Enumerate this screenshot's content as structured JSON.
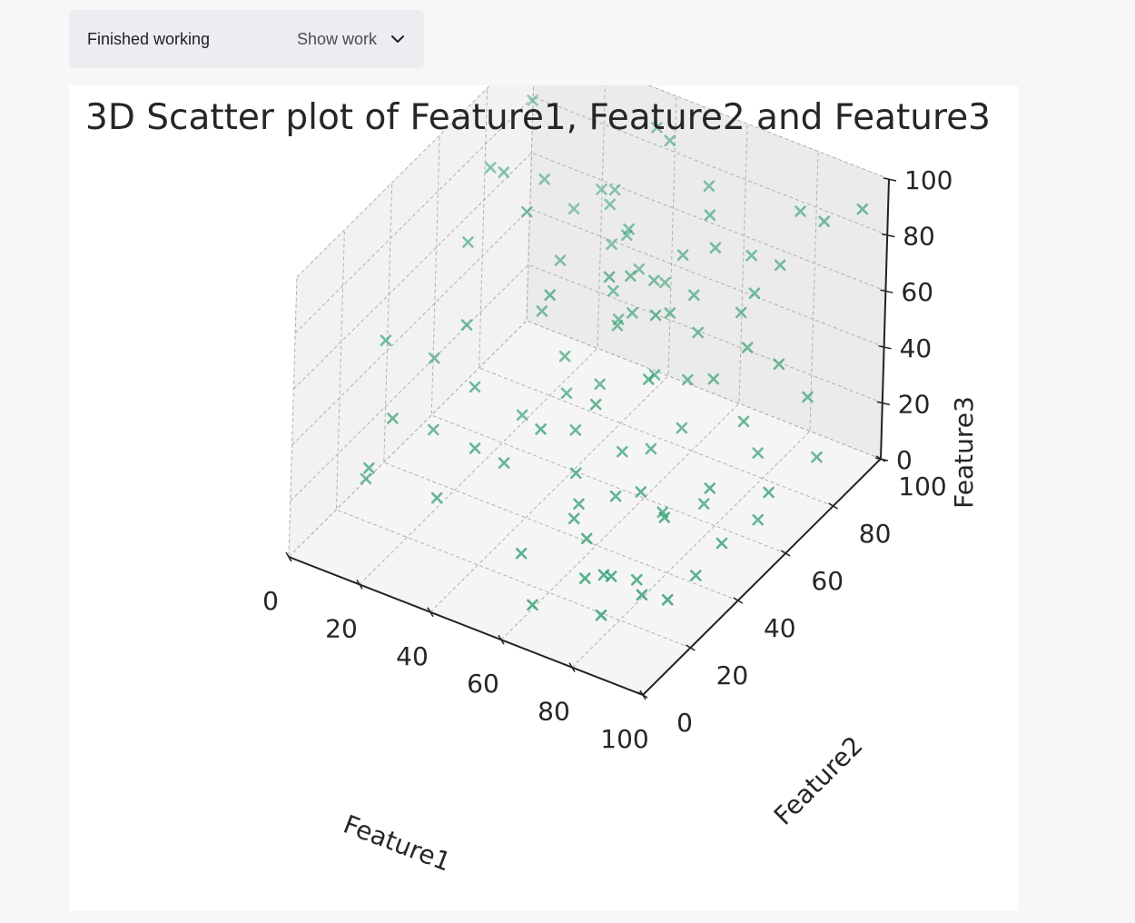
{
  "status": {
    "label": "Finished working",
    "toggle_label": "Show work",
    "toggle_icon": "chevron-down-icon"
  },
  "chart_data": {
    "type": "scatter",
    "projection": "3d",
    "title": "3D Scatter plot of Feature1, Feature2 and Feature3",
    "xlabel": "Feature1",
    "ylabel": "Feature2",
    "zlabel": "Feature3",
    "xlim": [
      0,
      100
    ],
    "ylim": [
      0,
      100
    ],
    "zlim": [
      0,
      100
    ],
    "xticks": [
      "0",
      "20",
      "40",
      "60",
      "80",
      "100"
    ],
    "yticks": [
      "0",
      "20",
      "40",
      "60",
      "80",
      "100"
    ],
    "zticks": [
      "0",
      "20",
      "40",
      "60",
      "80",
      "100"
    ],
    "grid": true,
    "marker": "x",
    "color": "#2e9e6e",
    "points": [
      [
        5,
        92,
        88
      ],
      [
        8,
        70,
        84
      ],
      [
        12,
        55,
        72
      ],
      [
        18,
        78,
        78
      ],
      [
        6,
        30,
        55
      ],
      [
        22,
        40,
        60
      ],
      [
        15,
        20,
        40
      ],
      [
        10,
        45,
        38
      ],
      [
        25,
        75,
        55
      ],
      [
        30,
        60,
        52
      ],
      [
        28,
        20,
        18
      ],
      [
        35,
        45,
        30
      ],
      [
        40,
        30,
        28
      ],
      [
        45,
        70,
        48
      ],
      [
        48,
        85,
        50
      ],
      [
        50,
        55,
        40
      ],
      [
        52,
        20,
        10
      ],
      [
        58,
        35,
        18
      ],
      [
        60,
        50,
        25
      ],
      [
        62,
        10,
        5
      ],
      [
        65,
        40,
        20
      ],
      [
        70,
        60,
        30
      ],
      [
        72,
        25,
        8
      ],
      [
        75,
        45,
        15
      ],
      [
        78,
        30,
        5
      ],
      [
        80,
        55,
        12
      ],
      [
        85,
        70,
        20
      ],
      [
        88,
        40,
        3
      ],
      [
        92,
        60,
        8
      ],
      [
        95,
        80,
        15
      ],
      [
        38,
        95,
        92
      ],
      [
        45,
        90,
        95
      ],
      [
        55,
        92,
        82
      ],
      [
        60,
        85,
        80
      ],
      [
        65,
        80,
        75
      ],
      [
        70,
        88,
        68
      ],
      [
        75,
        82,
        62
      ],
      [
        82,
        90,
        88
      ],
      [
        90,
        88,
        90
      ],
      [
        98,
        92,
        95
      ],
      [
        42,
        78,
        72
      ],
      [
        48,
        70,
        65
      ],
      [
        52,
        65,
        58
      ],
      [
        58,
        72,
        55
      ],
      [
        62,
        60,
        45
      ],
      [
        68,
        65,
        42
      ],
      [
        72,
        70,
        40
      ],
      [
        78,
        75,
        50
      ],
      [
        85,
        78,
        45
      ],
      [
        92,
        80,
        35
      ],
      [
        40,
        55,
        45
      ],
      [
        44,
        50,
        38
      ],
      [
        50,
        45,
        32
      ],
      [
        55,
        38,
        25
      ],
      [
        60,
        30,
        18
      ],
      [
        65,
        28,
        15
      ],
      [
        70,
        20,
        10
      ],
      [
        76,
        22,
        12
      ],
      [
        82,
        35,
        25
      ],
      [
        88,
        45,
        30
      ],
      [
        32,
        85,
        70
      ],
      [
        36,
        80,
        62
      ],
      [
        42,
        72,
        55
      ],
      [
        46,
        68,
        48
      ],
      [
        52,
        74,
        62
      ],
      [
        56,
        80,
        68
      ],
      [
        62,
        76,
        60
      ],
      [
        66,
        72,
        52
      ],
      [
        74,
        78,
        58
      ],
      [
        80,
        85,
        72
      ],
      [
        20,
        88,
        60
      ],
      [
        25,
        92,
        66
      ],
      [
        30,
        90,
        70
      ],
      [
        35,
        88,
        58
      ],
      [
        40,
        86,
        50
      ],
      [
        95,
        40,
        18
      ],
      [
        98,
        55,
        25
      ],
      [
        90,
        25,
        8
      ],
      [
        86,
        20,
        12
      ],
      [
        78,
        15,
        5
      ],
      [
        15,
        65,
        90
      ],
      [
        25,
        60,
        85
      ],
      [
        55,
        50,
        85
      ],
      [
        45,
        40,
        82
      ],
      [
        65,
        55,
        72
      ],
      [
        70,
        45,
        60
      ],
      [
        60,
        38,
        52
      ],
      [
        50,
        30,
        45
      ],
      [
        35,
        25,
        35
      ],
      [
        28,
        35,
        45
      ],
      [
        20,
        30,
        30
      ],
      [
        12,
        15,
        25
      ],
      [
        8,
        20,
        15
      ],
      [
        68,
        50,
        30
      ],
      [
        72,
        40,
        25
      ],
      [
        84,
        65,
        35
      ]
    ]
  }
}
